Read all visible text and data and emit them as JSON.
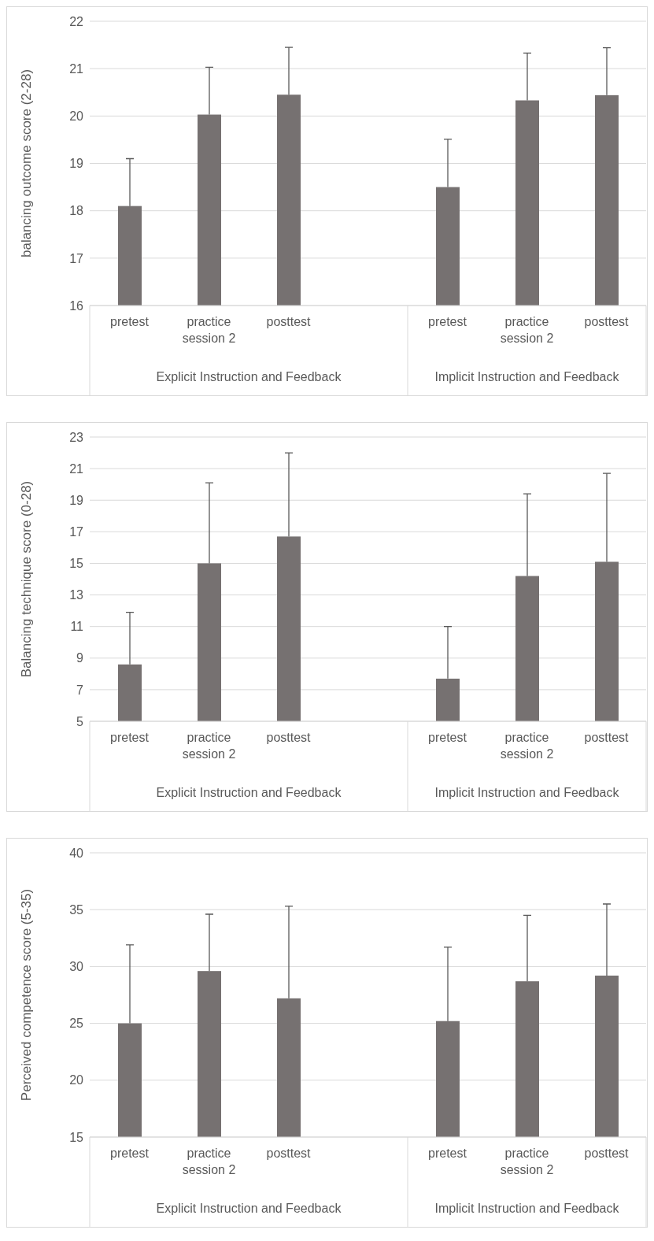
{
  "chart_data": [
    {
      "type": "bar",
      "ylabel": "balancing outcome score (2-28)",
      "categories": [
        "pretest",
        "practice session 2",
        "posttest",
        null,
        "pretest",
        "practice session 2",
        "posttest"
      ],
      "values": [
        18.1,
        20.03,
        20.45,
        null,
        18.5,
        20.33,
        20.44
      ],
      "errors": [
        [
          18.1,
          19.1
        ],
        [
          20.03,
          21.03
        ],
        [
          20.45,
          21.45
        ],
        null,
        [
          18.5,
          19.51
        ],
        [
          20.33,
          21.33
        ],
        [
          20.44,
          21.44
        ]
      ],
      "color": "#767171",
      "ylim": [
        16,
        22
      ],
      "yticks": [
        16,
        17,
        18,
        19,
        20,
        21,
        22
      ],
      "grid": "y",
      "annotations": [
        "Explicit Instruction and Feedback",
        "Implicit Instruction and Feedback"
      ]
    },
    {
      "type": "bar",
      "ylabel": "Balancing technique score (0-28)",
      "categories": [
        "pretest",
        "practice session 2",
        "posttest",
        null,
        "pretest",
        "practice session 2",
        "posttest"
      ],
      "values": [
        8.6,
        15.0,
        16.7,
        null,
        7.7,
        14.2,
        15.1
      ],
      "errors": [
        [
          8.6,
          11.9
        ],
        [
          15.0,
          20.1
        ],
        [
          16.7,
          22.0
        ],
        null,
        [
          7.7,
          11.0
        ],
        [
          14.2,
          19.4
        ],
        [
          15.1,
          20.7
        ]
      ],
      "color": "#767171",
      "ylim": [
        5,
        23
      ],
      "yticks": [
        5,
        7,
        9,
        11,
        13,
        15,
        17,
        19,
        21,
        23
      ],
      "grid": "y",
      "annotations": [
        "Explicit Instruction and Feedback",
        "Implicit Instruction and Feedback"
      ]
    },
    {
      "type": "bar",
      "ylabel": "Perceived competence score (5-35)",
      "categories": [
        "pretest",
        "practice session 2",
        "posttest",
        null,
        "pretest",
        "practice session 2",
        "posttest"
      ],
      "values": [
        25.0,
        29.6,
        27.2,
        null,
        25.2,
        28.7,
        29.2
      ],
      "errors": [
        [
          25.0,
          31.9
        ],
        [
          29.6,
          34.6
        ],
        [
          27.2,
          35.3
        ],
        null,
        [
          25.2,
          31.7
        ],
        [
          28.7,
          34.5
        ],
        [
          29.2,
          35.5
        ]
      ],
      "color": "#767171",
      "ylim": [
        15,
        40
      ],
      "yticks": [
        15,
        20,
        25,
        30,
        35,
        40
      ],
      "grid": "y",
      "annotations": [
        "Explicit Instruction and Feedback",
        "Implicit Instruction and Feedback"
      ]
    }
  ]
}
